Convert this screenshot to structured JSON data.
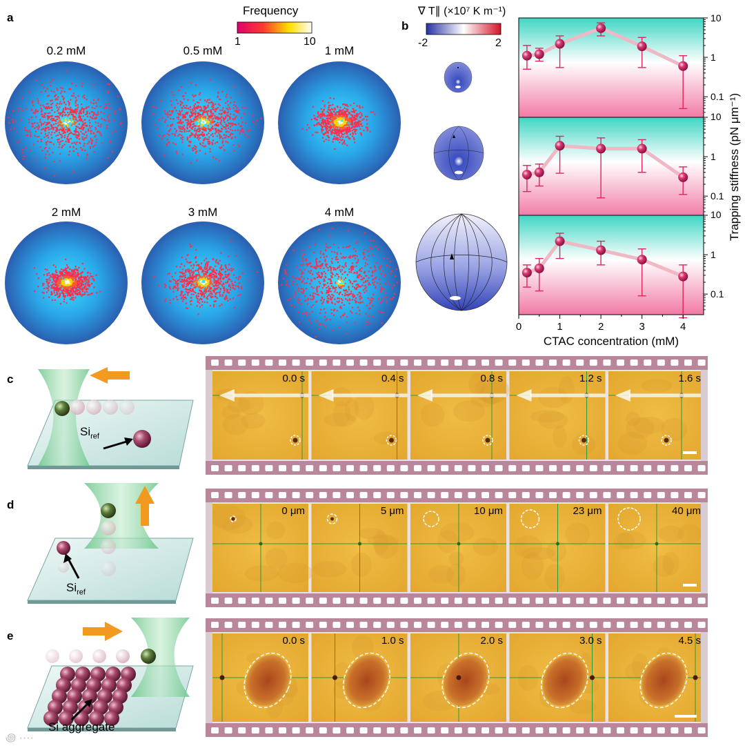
{
  "panel_labels": {
    "a": "a",
    "b": "b",
    "c": "c",
    "d": "d",
    "e": "e"
  },
  "panel_a": {
    "colorbar_title": "Frequency",
    "colorbar_min": "1",
    "colorbar_max": "10",
    "maps": [
      {
        "label": "0.2 mM",
        "spread": 0.9,
        "peak": 0.45
      },
      {
        "label": "0.5 mM",
        "spread": 0.75,
        "peak": 0.55
      },
      {
        "label": "1 mM",
        "spread": 0.45,
        "peak": 1.0
      },
      {
        "label": "2 mM",
        "spread": 0.42,
        "peak": 1.0
      },
      {
        "label": "3 mM",
        "spread": 0.6,
        "peak": 0.75
      },
      {
        "label": "4 mM",
        "spread": 1.1,
        "peak": 0.3
      }
    ]
  },
  "panel_b": {
    "colorbar_title": "∇ T∥ (×10⁷ K m⁻¹)",
    "colorbar_min": "-2",
    "colorbar_max": "2",
    "chart_data": {
      "type": "line",
      "xlabel": "CTAC concentration (mM)",
      "ylabel": "Trapping stiffness (pN μm⁻¹)",
      "x_ticks": [
        "0",
        "1",
        "2",
        "3",
        "4"
      ],
      "y_ticks": [
        "10",
        "1",
        "0.1"
      ],
      "x": [
        0.2,
        0.5,
        1,
        2,
        3,
        4
      ],
      "xlim": [
        0,
        4.5
      ],
      "ylim": [
        0.03,
        10
      ],
      "yscale": "log",
      "series": [
        {
          "name": "top",
          "values": [
            1.1,
            1.2,
            2.2,
            5.5,
            1.9,
            0.6
          ],
          "err_low": [
            0.5,
            0.8,
            0.55,
            3.5,
            0.55,
            0.05
          ],
          "err_high": [
            2.0,
            1.7,
            3.5,
            7.5,
            3.2,
            1.1
          ]
        },
        {
          "name": "middle",
          "values": [
            0.35,
            0.4,
            1.9,
            1.6,
            1.6,
            0.3
          ],
          "err_low": [
            0.13,
            0.18,
            0.38,
            0.09,
            0.4,
            0.11
          ],
          "err_high": [
            0.6,
            0.65,
            3.3,
            3.0,
            2.7,
            0.55
          ]
        },
        {
          "name": "bottom",
          "values": [
            0.35,
            0.45,
            2.2,
            1.3,
            0.75,
            0.28
          ],
          "err_low": [
            0.15,
            0.12,
            0.8,
            0.55,
            0.09,
            0.025
          ],
          "err_high": [
            0.55,
            0.8,
            3.5,
            2.2,
            1.4,
            0.55
          ]
        }
      ]
    }
  },
  "panel_c": {
    "ref_label": "Si",
    "ref_sub": "ref",
    "frames": [
      "0.0 s",
      "0.4 s",
      "0.8 s",
      "1.2 s",
      "1.6 s"
    ]
  },
  "panel_d": {
    "ref_label": "Si",
    "ref_sub": "ref",
    "frames": [
      "0 μm",
      "5 μm",
      "10 μm",
      "23 μm",
      "40 μm"
    ]
  },
  "panel_e": {
    "aggregate_label": "Si aggregate",
    "frames": [
      "0.0 s",
      "1.0 s",
      "2.0 s",
      "3.0 s",
      "4.5 s"
    ]
  },
  "colors": {
    "film": "#b9869b",
    "frame_bg": "#e9b43c",
    "marker": "#e0245e",
    "green_beam": "#8fd19e",
    "orange_arrow": "#f29a1f"
  }
}
